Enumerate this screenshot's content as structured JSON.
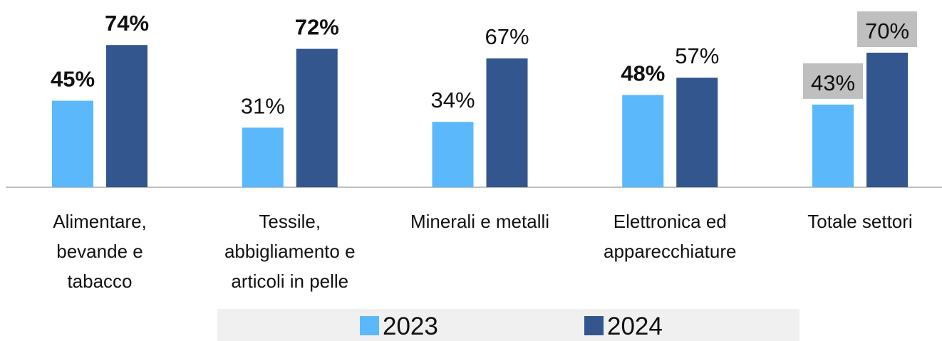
{
  "chart_data": {
    "type": "bar",
    "categories": [
      "Alimentare, bevande e tabacco",
      "Tessile, abbigliamento e articoli in pelle",
      "Minerali e metalli",
      "Elettronica ed apparecchiature",
      "Totale settori"
    ],
    "series": [
      {
        "name": "2023",
        "color": "#5bb8fb",
        "values": [
          45,
          31,
          34,
          48,
          43
        ],
        "value_labels": [
          "45%",
          "31%",
          "34%",
          "48%",
          "43%"
        ],
        "bold": [
          true,
          false,
          false,
          true,
          false
        ]
      },
      {
        "name": "2024",
        "color": "#34568f",
        "values": [
          74,
          72,
          67,
          57,
          70
        ],
        "value_labels": [
          "74%",
          "72%",
          "67%",
          "57%",
          "70%"
        ],
        "bold": [
          true,
          true,
          false,
          false,
          false
        ]
      }
    ],
    "legend": "bottom"
  }
}
